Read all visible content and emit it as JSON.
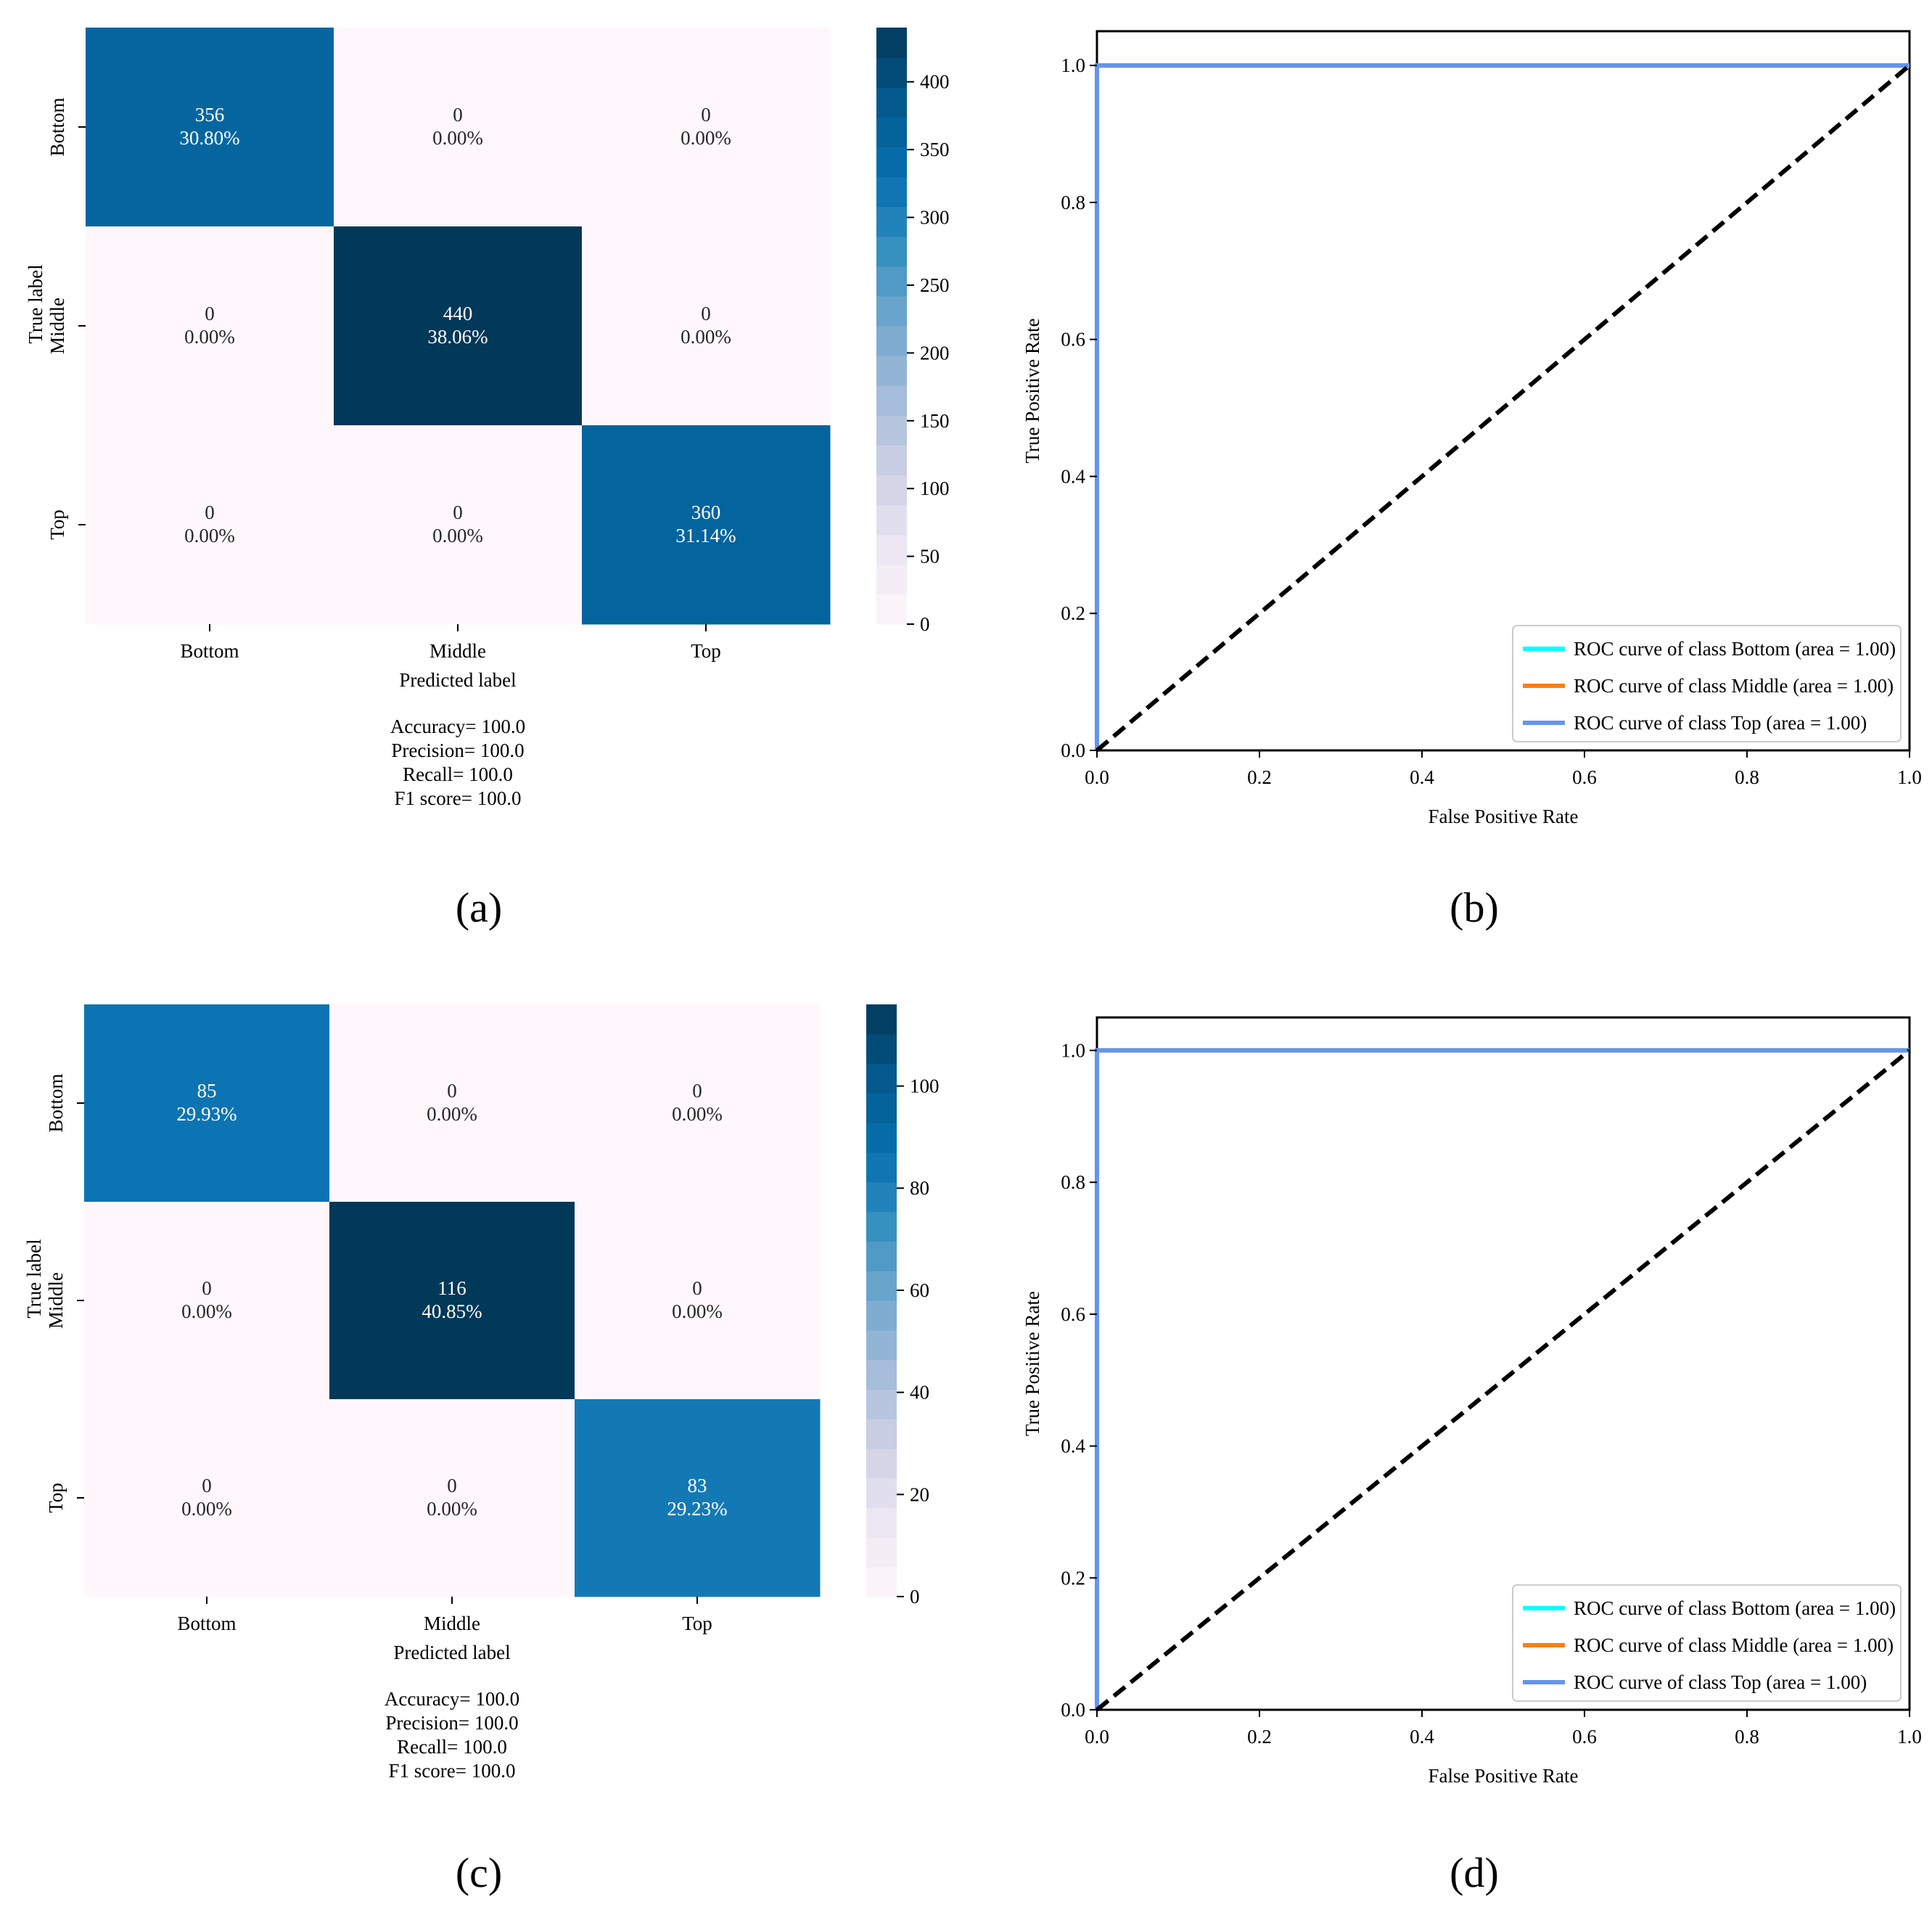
{
  "chart_data": [
    {
      "type": "heatmap",
      "panel": "(a)",
      "row_labels": [
        "Bottom",
        "Middle",
        "Top"
      ],
      "col_labels": [
        "Bottom",
        "Middle",
        "Top"
      ],
      "values": [
        [
          356,
          0,
          0
        ],
        [
          0,
          440,
          0
        ],
        [
          0,
          0,
          360
        ]
      ],
      "percents": [
        [
          "30.80%",
          "0.00%",
          "0.00%"
        ],
        [
          "0.00%",
          "38.06%",
          "0.00%"
        ],
        [
          "0.00%",
          "0.00%",
          "31.14%"
        ]
      ],
      "xlabel": "Predicted label",
      "ylabel": "True label",
      "colorbar": {
        "min": 0,
        "max": 440,
        "ticks": [
          0,
          50,
          100,
          150,
          200,
          250,
          300,
          350,
          400
        ]
      },
      "metrics": [
        "Accuracy= 100.0",
        "Precision= 100.0",
        "Recall= 100.0",
        "F1 score= 100.0"
      ]
    },
    {
      "type": "line",
      "panel": "(b)",
      "xlabel": "False Positive Rate",
      "ylabel": "True Positive Rate",
      "xlim": [
        0.0,
        1.0
      ],
      "ylim": [
        0.0,
        1.05
      ],
      "xticks": [
        "0.0",
        "0.2",
        "0.4",
        "0.6",
        "0.8",
        "1.0"
      ],
      "yticks": [
        "0.0",
        "0.2",
        "0.4",
        "0.6",
        "0.8",
        "1.0"
      ],
      "series": [
        {
          "name": "ROC curve of class Bottom (area = 1.00)",
          "color": "#00ffff",
          "x": [
            0.0,
            0.0,
            1.0
          ],
          "y": [
            0.0,
            1.0,
            1.0
          ]
        },
        {
          "name": "ROC curve of class Middle (area = 1.00)",
          "color": "#ff7f0e",
          "x": [
            0.0,
            0.0,
            1.0
          ],
          "y": [
            0.0,
            1.0,
            1.0
          ]
        },
        {
          "name": "ROC curve of class Top (area = 1.00)",
          "color": "#6495ed",
          "x": [
            0.0,
            0.0,
            1.0
          ],
          "y": [
            0.0,
            1.0,
            1.0
          ]
        }
      ],
      "diagonal": {
        "x": [
          0.0,
          1.0
        ],
        "y": [
          0.0,
          1.0
        ],
        "color": "#000000",
        "style": "dashed"
      },
      "legend": "lower-right"
    },
    {
      "type": "heatmap",
      "panel": "(c)",
      "row_labels": [
        "Bottom",
        "Middle",
        "Top"
      ],
      "col_labels": [
        "Bottom",
        "Middle",
        "Top"
      ],
      "values": [
        [
          85,
          0,
          0
        ],
        [
          0,
          116,
          0
        ],
        [
          0,
          0,
          83
        ]
      ],
      "percents": [
        [
          "29.93%",
          "0.00%",
          "0.00%"
        ],
        [
          "0.00%",
          "40.85%",
          "0.00%"
        ],
        [
          "0.00%",
          "0.00%",
          "29.23%"
        ]
      ],
      "xlabel": "Predicted label",
      "ylabel": "True label",
      "colorbar": {
        "min": 0,
        "max": 116,
        "ticks": [
          0,
          20,
          40,
          60,
          80,
          100
        ]
      },
      "metrics": [
        "Accuracy= 100.0",
        "Precision= 100.0",
        "Recall= 100.0",
        "F1 score= 100.0"
      ]
    },
    {
      "type": "line",
      "panel": "(d)",
      "xlabel": "False Positive Rate",
      "ylabel": "True Positive Rate",
      "xlim": [
        0.0,
        1.0
      ],
      "ylim": [
        0.0,
        1.05
      ],
      "xticks": [
        "0.0",
        "0.2",
        "0.4",
        "0.6",
        "0.8",
        "1.0"
      ],
      "yticks": [
        "0.0",
        "0.2",
        "0.4",
        "0.6",
        "0.8",
        "1.0"
      ],
      "series": [
        {
          "name": "ROC curve of class Bottom (area = 1.00)",
          "color": "#00ffff",
          "x": [
            0.0,
            0.0,
            1.0
          ],
          "y": [
            0.0,
            1.0,
            1.0
          ]
        },
        {
          "name": "ROC curve of class Middle (area = 1.00)",
          "color": "#ff7f0e",
          "x": [
            0.0,
            0.0,
            1.0
          ],
          "y": [
            0.0,
            1.0,
            1.0
          ]
        },
        {
          "name": "ROC curve of class Top (area = 1.00)",
          "color": "#6495ed",
          "x": [
            0.0,
            0.0,
            1.0
          ],
          "y": [
            0.0,
            1.0,
            1.0
          ]
        }
      ],
      "diagonal": {
        "x": [
          0.0,
          1.0
        ],
        "y": [
          0.0,
          1.0
        ],
        "color": "#000000",
        "style": "dashed"
      },
      "legend": "lower-right"
    }
  ],
  "colors": {
    "cm_low": "#fff7fb",
    "cm_mid": "#74a9cf",
    "cm_high": "#023858",
    "cm_text_dark": "#262626",
    "cm_text_light": "#ffffff"
  }
}
